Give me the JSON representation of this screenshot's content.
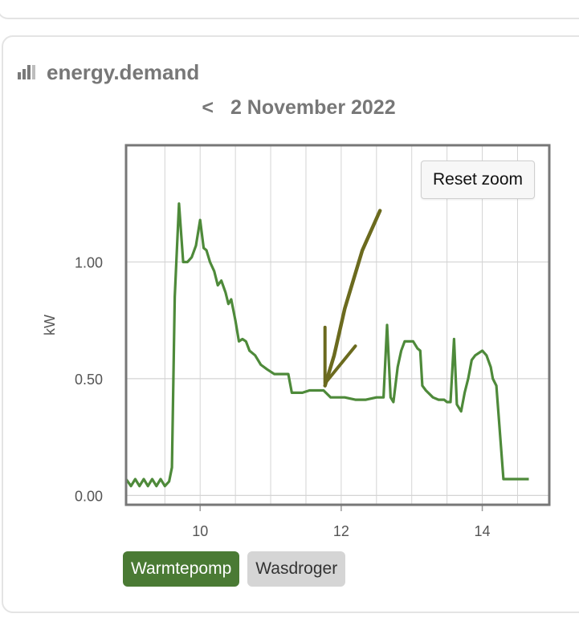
{
  "card": {
    "title": "energy.demand",
    "icon": "bar-chart-icon"
  },
  "date_nav": {
    "prev_label": "<",
    "date": "2 November 2022"
  },
  "reset_zoom_label": "Reset zoom",
  "colors": {
    "series": "#4e8a3a",
    "annotation": "#6b6a1e",
    "grid": "#d4d4d4",
    "frame": "#777777",
    "legend_active": "#4a7a34",
    "legend_inactive": "#d5d5d5"
  },
  "legend": [
    {
      "label": "Warmtepomp",
      "active": true
    },
    {
      "label": "Wasdroger",
      "active": false
    }
  ],
  "chart_data": {
    "type": "line",
    "ylabel": "kW",
    "xlim": [
      8.95,
      14.95
    ],
    "ylim": [
      -0.04,
      1.5
    ],
    "x_ticks": [
      10,
      12,
      14
    ],
    "y_ticks": [
      0.0,
      0.5,
      1.0
    ],
    "y_tick_labels": [
      "0.00",
      "0.50",
      "1.00"
    ],
    "grid": true,
    "series": [
      {
        "name": "Warmtepomp",
        "points": [
          [
            8.95,
            0.07
          ],
          [
            9.02,
            0.04
          ],
          [
            9.08,
            0.07
          ],
          [
            9.14,
            0.04
          ],
          [
            9.2,
            0.07
          ],
          [
            9.26,
            0.04
          ],
          [
            9.32,
            0.07
          ],
          [
            9.38,
            0.04
          ],
          [
            9.44,
            0.07
          ],
          [
            9.5,
            0.04
          ],
          [
            9.56,
            0.06
          ],
          [
            9.6,
            0.12
          ],
          [
            9.64,
            0.85
          ],
          [
            9.7,
            1.25
          ],
          [
            9.76,
            1.0
          ],
          [
            9.82,
            1.0
          ],
          [
            9.88,
            1.02
          ],
          [
            9.94,
            1.07
          ],
          [
            10.0,
            1.18
          ],
          [
            10.05,
            1.06
          ],
          [
            10.09,
            1.05
          ],
          [
            10.14,
            1.0
          ],
          [
            10.2,
            0.96
          ],
          [
            10.25,
            0.9
          ],
          [
            10.3,
            0.92
          ],
          [
            10.36,
            0.87
          ],
          [
            10.4,
            0.82
          ],
          [
            10.44,
            0.84
          ],
          [
            10.5,
            0.75
          ],
          [
            10.55,
            0.66
          ],
          [
            10.6,
            0.67
          ],
          [
            10.65,
            0.66
          ],
          [
            10.7,
            0.62
          ],
          [
            10.78,
            0.6
          ],
          [
            10.86,
            0.56
          ],
          [
            10.95,
            0.54
          ],
          [
            11.05,
            0.52
          ],
          [
            11.15,
            0.52
          ],
          [
            11.25,
            0.52
          ],
          [
            11.3,
            0.44
          ],
          [
            11.45,
            0.44
          ],
          [
            11.55,
            0.45
          ],
          [
            11.75,
            0.45
          ],
          [
            11.85,
            0.42
          ],
          [
            11.95,
            0.42
          ],
          [
            12.05,
            0.42
          ],
          [
            12.2,
            0.41
          ],
          [
            12.35,
            0.41
          ],
          [
            12.5,
            0.42
          ],
          [
            12.6,
            0.42
          ],
          [
            12.65,
            0.73
          ],
          [
            12.7,
            0.42
          ],
          [
            12.74,
            0.4
          ],
          [
            12.8,
            0.55
          ],
          [
            12.85,
            0.62
          ],
          [
            12.9,
            0.66
          ],
          [
            13.02,
            0.66
          ],
          [
            13.08,
            0.63
          ],
          [
            13.12,
            0.62
          ],
          [
            13.15,
            0.47
          ],
          [
            13.2,
            0.45
          ],
          [
            13.3,
            0.42
          ],
          [
            13.38,
            0.41
          ],
          [
            13.46,
            0.41
          ],
          [
            13.5,
            0.4
          ],
          [
            13.55,
            0.4
          ],
          [
            13.6,
            0.67
          ],
          [
            13.64,
            0.39
          ],
          [
            13.7,
            0.36
          ],
          [
            13.75,
            0.44
          ],
          [
            13.8,
            0.5
          ],
          [
            13.85,
            0.58
          ],
          [
            13.9,
            0.6
          ],
          [
            14.0,
            0.62
          ],
          [
            14.06,
            0.6
          ],
          [
            14.12,
            0.55
          ],
          [
            14.15,
            0.5
          ],
          [
            14.2,
            0.47
          ],
          [
            14.3,
            0.07
          ],
          [
            14.4,
            0.07
          ],
          [
            14.55,
            0.07
          ],
          [
            14.66,
            0.07
          ]
        ]
      }
    ],
    "annotations": [
      {
        "type": "hand-drawn-arrow",
        "shaft": [
          [
            11.77,
            0.47
          ],
          [
            11.9,
            0.6
          ],
          [
            12.05,
            0.8
          ],
          [
            12.3,
            1.05
          ],
          [
            12.55,
            1.22
          ]
        ],
        "head": [
          [
            11.77,
            0.72
          ],
          [
            11.77,
            0.48
          ],
          [
            12.2,
            0.64
          ]
        ]
      }
    ]
  }
}
